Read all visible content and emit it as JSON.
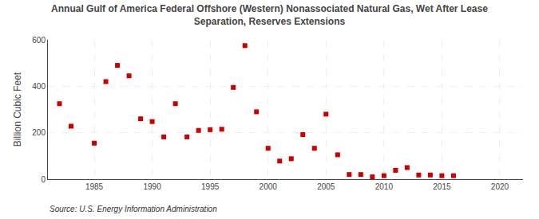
{
  "chart_data": {
    "type": "scatter",
    "title": "Annual Gulf of America Federal Offshore (Western) Nonassociated Natural Gas, Wet After Lease\nSeparation, Reserves Extensions",
    "ylabel": "Billion Cubic Feet",
    "annotations": [
      "Source: U.S. Energy Information Administration"
    ],
    "x": [
      1982,
      1983,
      1985,
      1986,
      1987,
      1988,
      1989,
      1990,
      1991,
      1992,
      1993,
      1994,
      1995,
      1996,
      1997,
      1998,
      1999,
      2000,
      2001,
      2002,
      2003,
      2004,
      2005,
      2006,
      2007,
      2008,
      2009,
      2010,
      2011,
      2012,
      2013,
      2014,
      2015,
      2016
    ],
    "values": [
      325,
      228,
      155,
      420,
      490,
      445,
      260,
      248,
      182,
      325,
      182,
      210,
      213,
      215,
      395,
      575,
      290,
      133,
      78,
      88,
      192,
      133,
      280,
      105,
      20,
      20,
      10,
      15,
      38,
      50,
      18,
      18,
      15,
      15
    ],
    "color": "#cc0000",
    "marker": "square",
    "xlim": [
      1981,
      2022
    ],
    "ylim": [
      0,
      600
    ],
    "xticks": [
      1985,
      1990,
      1995,
      2000,
      2005,
      2010,
      2015,
      2020
    ],
    "yticks": [
      0,
      200,
      400,
      600
    ],
    "grid": true
  }
}
